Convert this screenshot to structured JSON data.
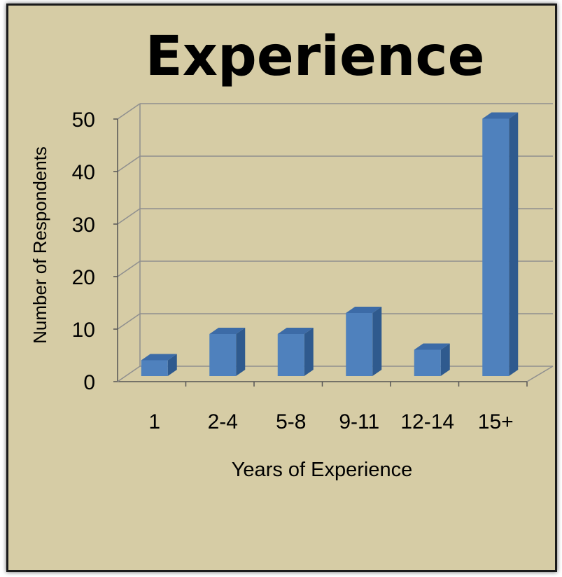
{
  "chart_data": {
    "type": "bar",
    "title": "Experience",
    "xlabel": "Years of Experience",
    "ylabel": "Number of Respondents",
    "categories": [
      "1",
      "2-4",
      "5-8",
      "9-11",
      "12-14",
      "15+"
    ],
    "values": [
      3,
      8,
      8,
      12,
      5,
      49
    ],
    "ylim": [
      0,
      50
    ],
    "yticks": [
      0,
      10,
      20,
      30,
      40,
      50
    ],
    "grid": true,
    "legend": "none",
    "colors": {
      "bar_front": "#4f81bd",
      "bar_side": "#2f5a8e",
      "bar_top": "#3c6ba7",
      "background": "#d6cca5",
      "gridline": "#8f8f8f"
    }
  }
}
